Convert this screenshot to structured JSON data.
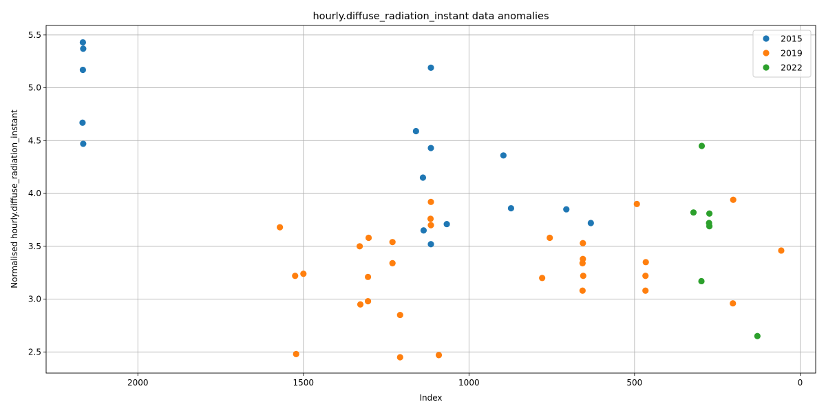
{
  "chart_data": {
    "type": "scatter",
    "title": "hourly.diffuse_radiation_instant data anomalies",
    "xlabel": "Index",
    "ylabel": "Normalised hourly.diffuse_radiation_instant",
    "xlim": [
      2277,
      -47
    ],
    "ylim": [
      2.3,
      5.59
    ],
    "x_inverted": true,
    "grid": true,
    "legend_position": "top-right",
    "xticks": [
      2000,
      1500,
      1000,
      500,
      0
    ],
    "yticks": [
      2.5,
      3.0,
      3.5,
      4.0,
      4.5,
      5.0,
      5.5
    ],
    "series": [
      {
        "name": "2015",
        "color": "#1f77b4",
        "points": [
          [
            2166,
            5.43
          ],
          [
            2165,
            5.37
          ],
          [
            2166,
            5.17
          ],
          [
            2167,
            4.67
          ],
          [
            2165,
            4.47
          ],
          [
            1115,
            5.19
          ],
          [
            1160,
            4.59
          ],
          [
            1115,
            4.43
          ],
          [
            896,
            4.36
          ],
          [
            1139,
            4.15
          ],
          [
            873,
            3.86
          ],
          [
            706,
            3.85
          ],
          [
            632,
            3.72
          ],
          [
            1067,
            3.71
          ],
          [
            1137,
            3.65
          ],
          [
            1115,
            3.52
          ]
        ]
      },
      {
        "name": "2019",
        "color": "#ff7f0e",
        "points": [
          [
            1115,
            3.92
          ],
          [
            1116,
            3.76
          ],
          [
            1115,
            3.7
          ],
          [
            1571,
            3.68
          ],
          [
            1303,
            3.58
          ],
          [
            1231,
            3.54
          ],
          [
            1330,
            3.5
          ],
          [
            1231,
            3.34
          ],
          [
            1500,
            3.24
          ],
          [
            1525,
            3.22
          ],
          [
            1305,
            3.21
          ],
          [
            1305,
            2.98
          ],
          [
            1328,
            2.95
          ],
          [
            1208,
            2.85
          ],
          [
            1522,
            2.48
          ],
          [
            1091,
            2.47
          ],
          [
            1208,
            2.45
          ],
          [
            493,
            3.9
          ],
          [
            202,
            3.94
          ],
          [
            756,
            3.58
          ],
          [
            656,
            3.53
          ],
          [
            656,
            3.38
          ],
          [
            657,
            3.34
          ],
          [
            466,
            3.35
          ],
          [
            57,
            3.46
          ],
          [
            655,
            3.22
          ],
          [
            467,
            3.22
          ],
          [
            779,
            3.2
          ],
          [
            657,
            3.08
          ],
          [
            467,
            3.08
          ],
          [
            203,
            2.96
          ]
        ]
      },
      {
        "name": "2022",
        "color": "#2ca02c",
        "points": [
          [
            297,
            4.45
          ],
          [
            322,
            3.82
          ],
          [
            274,
            3.81
          ],
          [
            275,
            3.72
          ],
          [
            274,
            3.69
          ],
          [
            298,
            3.17
          ],
          [
            129,
            2.65
          ]
        ]
      }
    ]
  }
}
